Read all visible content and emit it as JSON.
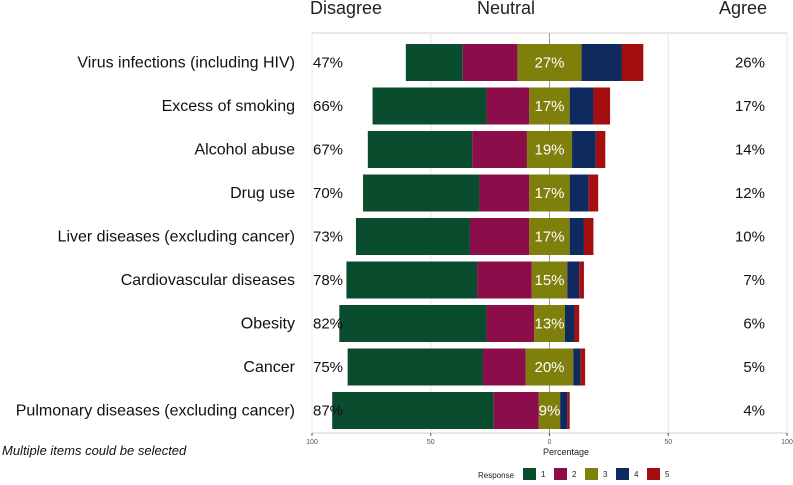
{
  "chart_data": {
    "type": "bar",
    "subtype": "diverging-stacked",
    "header": {
      "left": "Disagree",
      "center": "Neutral",
      "right": "Agree"
    },
    "categories": [
      "Virus infections (including HIV)",
      "Excess of smoking",
      "Alcohol abuse",
      "Drug use",
      "Liver diseases (excluding cancer)",
      "Cardiovascular diseases",
      "Obesity",
      "Cancer",
      "Pulmonary diseases (excluding cancer)"
    ],
    "disagree_labels": [
      "47%",
      "66%",
      "67%",
      "70%",
      "73%",
      "78%",
      "82%",
      "75%",
      "87%"
    ],
    "neutral_labels": [
      "27%",
      "17%",
      "19%",
      "17%",
      "17%",
      "15%",
      "13%",
      "20%",
      "9%"
    ],
    "agree_labels": [
      "26%",
      "17%",
      "14%",
      "12%",
      "10%",
      "7%",
      "6%",
      "5%",
      "4%"
    ],
    "series": [
      {
        "name": "1",
        "color": "#0a4d2e",
        "values": [
          24,
          48,
          44,
          49,
          48,
          55,
          62,
          57,
          68
        ]
      },
      {
        "name": "2",
        "color": "#8b0e4a",
        "values": [
          23,
          18,
          23,
          21,
          25,
          23,
          20,
          18,
          19
        ]
      },
      {
        "name": "3",
        "color": "#7f7f0c",
        "values": [
          27,
          17,
          19,
          17,
          17,
          15,
          13,
          20,
          9
        ]
      },
      {
        "name": "4",
        "color": "#0e2a5e",
        "values": [
          17,
          10,
          10,
          8,
          6,
          5,
          4,
          3,
          3
        ]
      },
      {
        "name": "5",
        "color": "#a50e0e",
        "values": [
          9,
          7,
          4,
          4,
          4,
          2,
          2,
          2,
          1
        ]
      }
    ],
    "xlabel": "Percentage",
    "xticks": [
      "100",
      "50",
      "0",
      "50",
      "100"
    ],
    "xlim": [
      -100,
      100
    ],
    "grid": true,
    "legend": {
      "title": "Response",
      "entries": [
        "1",
        "2",
        "3",
        "4",
        "5"
      ],
      "position": "bottom"
    },
    "note": "Multiple items could be selected"
  }
}
